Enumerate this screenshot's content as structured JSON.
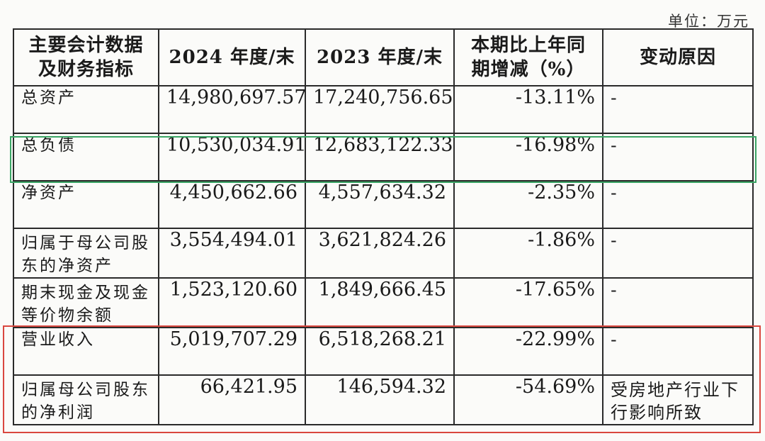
{
  "unit_label": "单位：万元",
  "headers": {
    "indicator": "主要会计数据及财务指标",
    "y2024": "2024 年度/末",
    "y2023": "2023 年度/末",
    "change": "本期比上年同期增减（%）",
    "reason": "变动原因"
  },
  "rows": [
    {
      "label": "总资产",
      "v2024": "14,980,697.57",
      "v2023": "17,240,756.65",
      "change": "-13.11%",
      "reason": "-"
    },
    {
      "label": "总负债",
      "v2024": "10,530,034.91",
      "v2023": "12,683,122.33",
      "change": "-16.98%",
      "reason": "-"
    },
    {
      "label": "净资产",
      "v2024": "4,450,662.66",
      "v2023": "4,557,634.32",
      "change": "-2.35%",
      "reason": "-"
    },
    {
      "label": "归属于母公司股东的净资产",
      "v2024": "3,554,494.01",
      "v2023": "3,621,824.26",
      "change": "-1.86%",
      "reason": "-"
    },
    {
      "label": "期末现金及现金等价物余额",
      "v2024": "1,523,120.60",
      "v2023": "1,849,666.45",
      "change": "-17.65%",
      "reason": "-"
    },
    {
      "label": "营业收入",
      "v2024": "5,019,707.29",
      "v2023": "6,518,268.21",
      "change": "-22.99%",
      "reason": "-"
    },
    {
      "label": "归属母公司股东的净利润",
      "v2024": "66,421.95",
      "v2023": "146,594.32",
      "change": "-54.69%",
      "reason": "受房地产行业下行影响所致"
    }
  ],
  "highlight_colors": {
    "green": "#3aa565",
    "red": "#d9473f"
  }
}
